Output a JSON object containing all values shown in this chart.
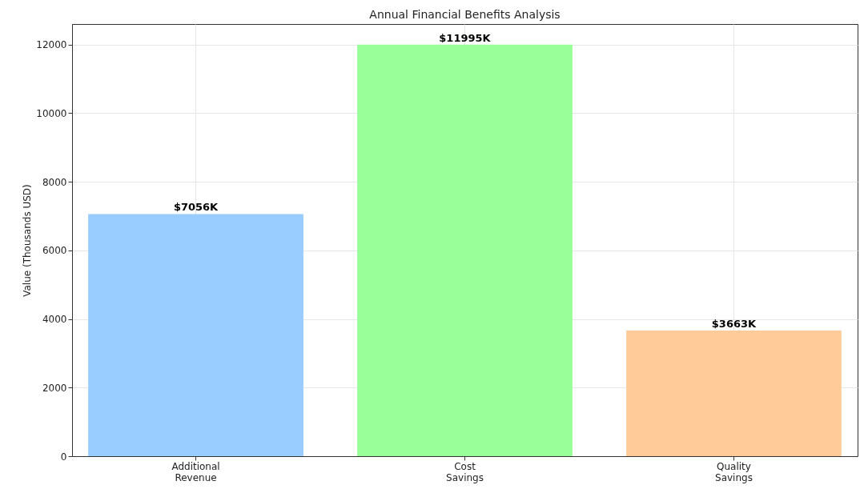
{
  "chart_data": {
    "type": "bar",
    "title": "Annual Financial Benefits Analysis",
    "ylabel": "Value (Thousands USD)",
    "categories": [
      "Additional\nRevenue",
      "Cost\nSavings",
      "Quality\nSavings"
    ],
    "values": [
      7056,
      11995,
      3663
    ],
    "colors": [
      "#99ccff",
      "#99ff99",
      "#ffcc99"
    ],
    "value_labels": [
      "$7056K",
      "$11995K",
      "$3663K"
    ],
    "ylim": [
      0,
      12595
    ],
    "yticks": [
      0,
      2000,
      4000,
      6000,
      8000,
      10000,
      12000
    ],
    "grid": true
  }
}
